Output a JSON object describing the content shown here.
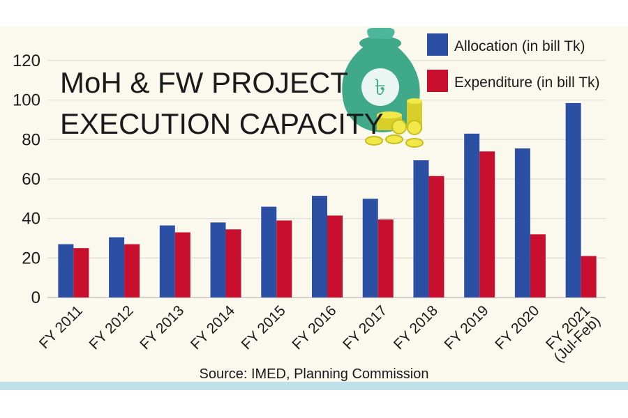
{
  "chart_data": {
    "type": "bar",
    "title": [
      "MoH & FW PROJECT",
      "EXECUTION CAPACITY"
    ],
    "source": "Source: IMED, Planning Commission",
    "categories": [
      [
        "FY 2011"
      ],
      [
        "FY 2012"
      ],
      [
        "FY 2013"
      ],
      [
        "FY 2014"
      ],
      [
        "FY 2015"
      ],
      [
        "FY 2016"
      ],
      [
        "FY 2017"
      ],
      [
        "FY 2018"
      ],
      [
        "FY 2019"
      ],
      [
        "FY 2020"
      ],
      [
        "FY 2021",
        "(Jul-Feb)"
      ]
    ],
    "series": [
      {
        "name": "Allocation (in bill Tk)",
        "color": "#2a4fa3",
        "values": [
          27,
          30.5,
          36.5,
          38,
          46,
          51.5,
          50,
          69.5,
          83,
          75.5,
          98.5
        ]
      },
      {
        "name": "Expenditure (in bill Tk)",
        "color": "#c8102e",
        "values": [
          25,
          27,
          33,
          34.5,
          39,
          41.5,
          39.5,
          61.5,
          74,
          32,
          21
        ]
      }
    ],
    "ylim": [
      0,
      120
    ],
    "yticks": [
      0,
      20,
      40,
      60,
      80,
      100,
      120
    ],
    "grid": true,
    "legend_position": "top-right",
    "illustration": "money-bag-icon"
  }
}
